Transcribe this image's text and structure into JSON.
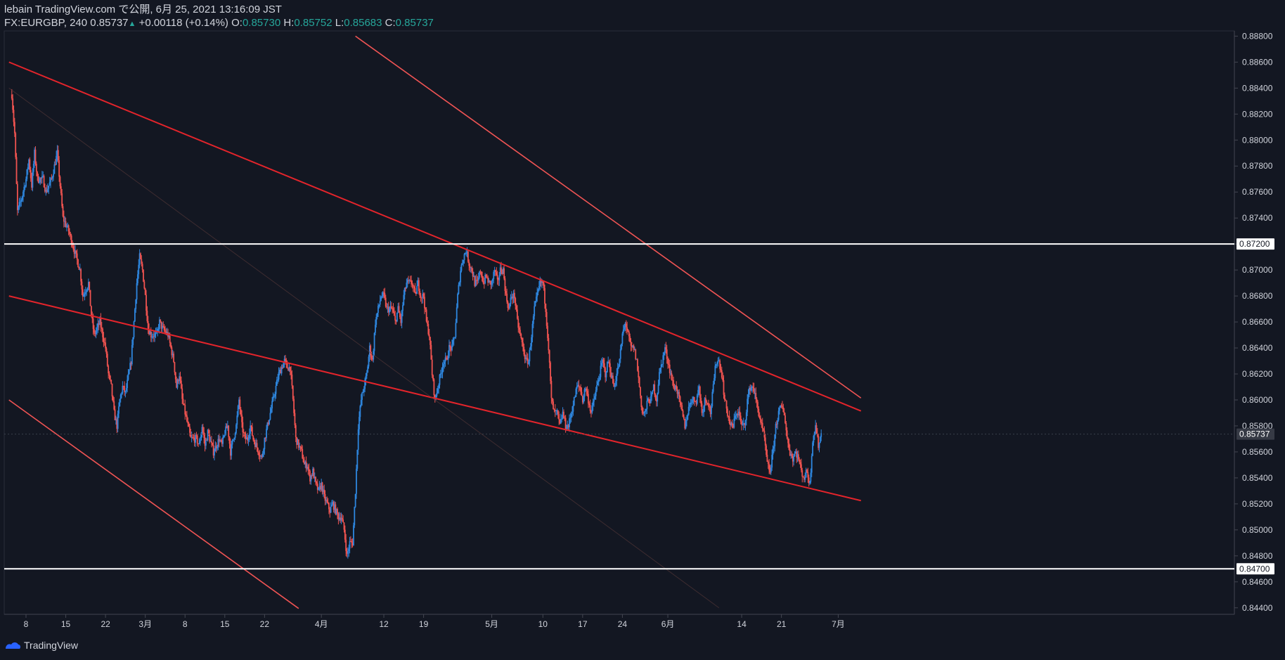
{
  "header": {
    "line1": "lebain TradingView.com で公開, 6月 25, 2021 13:16:09 JST",
    "symbol": "FX:EURGBP, 240",
    "last": "0.85737",
    "change": "+0.00118 (+0.14%)",
    "o_label": "O:",
    "o_value": "0.85730",
    "h_label": "H:",
    "h_value": "0.85752",
    "l_label": "L:",
    "l_value": "0.85683",
    "c_label": "C:",
    "c_value": "0.85737"
  },
  "brand": "TradingView",
  "colors": {
    "bg": "#131722",
    "up": "#2e86de",
    "down": "#ef5350",
    "trend": "#e3242b",
    "channel": "#f05454",
    "level": "#ffffff",
    "grid": "#1e222d",
    "text": "#d1d4dc"
  },
  "chart_data": {
    "type": "candlestick",
    "title": "FX:EURGBP, 240",
    "ylim": [
      0.8435,
      0.8884
    ],
    "ylabel": "",
    "xlabel": "",
    "y_ticks": [
      "0.88800",
      "0.88600",
      "0.88400",
      "0.88200",
      "0.88000",
      "0.87800",
      "0.87600",
      "0.87400",
      "0.87200",
      "0.87000",
      "0.86800",
      "0.86600",
      "0.86400",
      "0.86200",
      "0.86000",
      "0.85800",
      "0.85600",
      "0.85400",
      "0.85200",
      "0.85000",
      "0.84800",
      "0.84600",
      "0.84400"
    ],
    "x_ticks": [
      {
        "label": "8",
        "day": 0
      },
      {
        "label": "15",
        "day": 7
      },
      {
        "label": "22",
        "day": 14
      },
      {
        "label": "3月",
        "day": 21
      },
      {
        "label": "8",
        "day": 28
      },
      {
        "label": "15",
        "day": 35
      },
      {
        "label": "22",
        "day": 42
      },
      {
        "label": "4月",
        "day": 52
      },
      {
        "label": "12",
        "day": 63
      },
      {
        "label": "19",
        "day": 70
      },
      {
        "label": "5月",
        "day": 82
      },
      {
        "label": "10",
        "day": 91
      },
      {
        "label": "17",
        "day": 98
      },
      {
        "label": "24",
        "day": 105
      },
      {
        "label": "6月",
        "day": 113
      },
      {
        "label": "14",
        "day": 126
      },
      {
        "label": "21",
        "day": 133
      },
      {
        "label": "7月",
        "day": 143
      }
    ],
    "horizontal_levels": [
      "0.87200",
      "0.84700"
    ],
    "last_price": "0.85737",
    "price_path": [
      [
        -2.5,
        0.8835
      ],
      [
        -2,
        0.8805
      ],
      [
        -1.5,
        0.8745
      ],
      [
        -0.8,
        0.8755
      ],
      [
        0,
        0.877
      ],
      [
        0.5,
        0.8785
      ],
      [
        1,
        0.8765
      ],
      [
        1.5,
        0.879
      ],
      [
        2,
        0.877
      ],
      [
        3,
        0.877
      ],
      [
        3.5,
        0.876
      ],
      [
        4.5,
        0.877
      ],
      [
        5,
        0.878
      ],
      [
        5.5,
        0.879
      ],
      [
        6,
        0.8765
      ],
      [
        6.5,
        0.874
      ],
      [
        7.5,
        0.873
      ],
      [
        8.5,
        0.8715
      ],
      [
        9.5,
        0.87
      ],
      [
        10,
        0.868
      ],
      [
        11,
        0.869
      ],
      [
        11.5,
        0.8665
      ],
      [
        12,
        0.865
      ],
      [
        13,
        0.866
      ],
      [
        14,
        0.864
      ],
      [
        14.5,
        0.862
      ],
      [
        15,
        0.861
      ],
      [
        15.5,
        0.859
      ],
      [
        16,
        0.858
      ],
      [
        16.5,
        0.86
      ],
      [
        17,
        0.861
      ],
      [
        17.5,
        0.8605
      ],
      [
        18.5,
        0.863
      ],
      [
        19,
        0.866
      ],
      [
        19.5,
        0.869
      ],
      [
        20,
        0.871
      ],
      [
        20.5,
        0.87
      ],
      [
        21,
        0.868
      ],
      [
        21.5,
        0.8655
      ],
      [
        22,
        0.865
      ],
      [
        23,
        0.865
      ],
      [
        23.5,
        0.866
      ],
      [
        24,
        0.8655
      ],
      [
        25,
        0.865
      ],
      [
        25.5,
        0.864
      ],
      [
        26,
        0.863
      ],
      [
        26.5,
        0.861
      ],
      [
        27,
        0.862
      ],
      [
        27.5,
        0.86
      ],
      [
        28,
        0.859
      ],
      [
        28.5,
        0.858
      ],
      [
        29,
        0.857
      ],
      [
        30,
        0.857
      ],
      [
        30.5,
        0.8565
      ],
      [
        31,
        0.858
      ],
      [
        31.5,
        0.8565
      ],
      [
        32,
        0.8575
      ],
      [
        33,
        0.856
      ],
      [
        34,
        0.857
      ],
      [
        34.5,
        0.8565
      ],
      [
        35,
        0.8575
      ],
      [
        35.5,
        0.858
      ],
      [
        36,
        0.856
      ],
      [
        37,
        0.858
      ],
      [
        37.5,
        0.86
      ],
      [
        38,
        0.858
      ],
      [
        38.5,
        0.857
      ],
      [
        39,
        0.857
      ],
      [
        39.5,
        0.858
      ],
      [
        40,
        0.857
      ],
      [
        40.5,
        0.8565
      ],
      [
        41,
        0.856
      ],
      [
        41.5,
        0.8555
      ],
      [
        42,
        0.857
      ],
      [
        43,
        0.859
      ],
      [
        43.5,
        0.86
      ],
      [
        44,
        0.861
      ],
      [
        44.5,
        0.862
      ],
      [
        45,
        0.8625
      ],
      [
        45.5,
        0.863
      ],
      [
        46,
        0.8625
      ],
      [
        46.5,
        0.8625
      ],
      [
        47,
        0.86
      ],
      [
        47.5,
        0.857
      ],
      [
        48,
        0.8565
      ],
      [
        48.5,
        0.856
      ],
      [
        49,
        0.855
      ],
      [
        49.5,
        0.855
      ],
      [
        50,
        0.854
      ],
      [
        50.5,
        0.8545
      ],
      [
        51,
        0.8535
      ],
      [
        51.5,
        0.853
      ],
      [
        52,
        0.8535
      ],
      [
        52.5,
        0.8525
      ],
      [
        53,
        0.852
      ],
      [
        53.5,
        0.8515
      ],
      [
        54,
        0.852
      ],
      [
        54.5,
        0.8515
      ],
      [
        55,
        0.851
      ],
      [
        55.5,
        0.851
      ],
      [
        56,
        0.85
      ],
      [
        56.5,
        0.848
      ],
      [
        57,
        0.849
      ],
      [
        57.5,
        0.849
      ],
      [
        58,
        0.853
      ],
      [
        58.5,
        0.858
      ],
      [
        59,
        0.86
      ],
      [
        60,
        0.862
      ],
      [
        60.5,
        0.864
      ],
      [
        61,
        0.863
      ],
      [
        61.5,
        0.866
      ],
      [
        62,
        0.867
      ],
      [
        62.5,
        0.868
      ],
      [
        63,
        0.868
      ],
      [
        63.5,
        0.867
      ],
      [
        64,
        0.867
      ],
      [
        64.5,
        0.867
      ],
      [
        65,
        0.866
      ],
      [
        65.5,
        0.867
      ],
      [
        66,
        0.866
      ],
      [
        66.5,
        0.868
      ],
      [
        67,
        0.869
      ],
      [
        67.5,
        0.869
      ],
      [
        68,
        0.869
      ],
      [
        68.5,
        0.868
      ],
      [
        69,
        0.869
      ],
      [
        69.5,
        0.868
      ],
      [
        70,
        0.868
      ],
      [
        70.5,
        0.866
      ],
      [
        71,
        0.865
      ],
      [
        71.5,
        0.862
      ],
      [
        72,
        0.86
      ],
      [
        72.5,
        0.861
      ],
      [
        73,
        0.862
      ],
      [
        73.5,
        0.863
      ],
      [
        74,
        0.863
      ],
      [
        74.5,
        0.864
      ],
      [
        75,
        0.864
      ],
      [
        75.5,
        0.865
      ],
      [
        76,
        0.868
      ],
      [
        76.5,
        0.87
      ],
      [
        77,
        0.871
      ],
      [
        77.5,
        0.8715
      ],
      [
        78,
        0.8705
      ],
      [
        78.5,
        0.87
      ],
      [
        79,
        0.869
      ],
      [
        79.5,
        0.869
      ],
      [
        80,
        0.87
      ],
      [
        80.5,
        0.869
      ],
      [
        81,
        0.8695
      ],
      [
        81.5,
        0.869
      ],
      [
        82,
        0.869
      ],
      [
        82.5,
        0.87
      ],
      [
        83,
        0.869
      ],
      [
        83.5,
        0.87
      ],
      [
        84,
        0.87
      ],
      [
        84.5,
        0.868
      ],
      [
        85,
        0.867
      ],
      [
        85.5,
        0.868
      ],
      [
        86,
        0.868
      ],
      [
        86.5,
        0.866
      ],
      [
        87,
        0.865
      ],
      [
        87.5,
        0.864
      ],
      [
        88,
        0.863
      ],
      [
        88.5,
        0.863
      ],
      [
        89,
        0.865
      ],
      [
        89.5,
        0.867
      ],
      [
        90,
        0.868
      ],
      [
        90.5,
        0.869
      ],
      [
        91,
        0.869
      ],
      [
        91.5,
        0.867
      ],
      [
        92,
        0.864
      ],
      [
        92.5,
        0.86
      ],
      [
        93,
        0.859
      ],
      [
        93.5,
        0.859
      ],
      [
        94,
        0.858
      ],
      [
        94.5,
        0.859
      ],
      [
        95,
        0.858
      ],
      [
        95.5,
        0.858
      ],
      [
        96,
        0.859
      ],
      [
        96.5,
        0.86
      ],
      [
        97,
        0.861
      ],
      [
        97.5,
        0.861
      ],
      [
        98,
        0.86
      ],
      [
        98.5,
        0.861
      ],
      [
        99,
        0.86
      ],
      [
        99.5,
        0.859
      ],
      [
        100,
        0.86
      ],
      [
        100.5,
        0.861
      ],
      [
        101,
        0.862
      ],
      [
        101.5,
        0.863
      ],
      [
        102,
        0.862
      ],
      [
        102.5,
        0.863
      ],
      [
        103,
        0.862
      ],
      [
        103.5,
        0.861
      ],
      [
        104,
        0.862
      ],
      [
        104.5,
        0.863
      ],
      [
        105,
        0.865
      ],
      [
        105.5,
        0.866
      ],
      [
        106,
        0.865
      ],
      [
        106.5,
        0.864
      ],
      [
        107,
        0.864
      ],
      [
        107.5,
        0.863
      ],
      [
        108,
        0.861
      ],
      [
        108.5,
        0.859
      ],
      [
        109,
        0.859
      ],
      [
        109.5,
        0.86
      ],
      [
        110,
        0.86
      ],
      [
        110.5,
        0.861
      ],
      [
        111,
        0.86
      ],
      [
        111.5,
        0.862
      ],
      [
        112,
        0.863
      ],
      [
        112.5,
        0.864
      ],
      [
        113,
        0.863
      ],
      [
        113.5,
        0.862
      ],
      [
        114,
        0.861
      ],
      [
        114.5,
        0.861
      ],
      [
        115,
        0.86
      ],
      [
        115.5,
        0.859
      ],
      [
        116,
        0.858
      ],
      [
        116.5,
        0.859
      ],
      [
        117,
        0.86
      ],
      [
        117.5,
        0.86
      ],
      [
        118,
        0.86
      ],
      [
        118.5,
        0.861
      ],
      [
        119,
        0.859
      ],
      [
        119.5,
        0.86
      ],
      [
        120,
        0.86
      ],
      [
        120.5,
        0.859
      ],
      [
        121,
        0.861
      ],
      [
        121.5,
        0.863
      ],
      [
        122,
        0.863
      ],
      [
        122.5,
        0.862
      ],
      [
        123,
        0.86
      ],
      [
        123.5,
        0.859
      ],
      [
        124,
        0.858
      ],
      [
        124.5,
        0.858
      ],
      [
        125,
        0.859
      ],
      [
        125.5,
        0.859
      ],
      [
        126,
        0.858
      ],
      [
        126.5,
        0.858
      ],
      [
        127,
        0.86
      ],
      [
        127.5,
        0.861
      ],
      [
        128,
        0.861
      ],
      [
        128.5,
        0.86
      ],
      [
        129,
        0.859
      ],
      [
        129.5,
        0.858
      ],
      [
        130,
        0.857
      ],
      [
        130.5,
        0.855
      ],
      [
        131,
        0.8545
      ],
      [
        131.5,
        0.856
      ],
      [
        132,
        0.858
      ],
      [
        132.5,
        0.859
      ],
      [
        133,
        0.8595
      ],
      [
        133.5,
        0.859
      ],
      [
        134,
        0.857
      ],
      [
        134.5,
        0.856
      ],
      [
        135,
        0.8555
      ],
      [
        135.5,
        0.856
      ],
      [
        136,
        0.8555
      ],
      [
        136.5,
        0.8545
      ],
      [
        137,
        0.854
      ],
      [
        137.5,
        0.8545
      ],
      [
        138,
        0.8535
      ],
      [
        138.5,
        0.857
      ],
      [
        139,
        0.858
      ],
      [
        139.5,
        0.8565
      ],
      [
        140,
        0.8574
      ]
    ],
    "lines": [
      {
        "name": "upper-trendline",
        "from": [
          -3,
          0.886
        ],
        "to": [
          147,
          0.85915
        ]
      },
      {
        "name": "middle-trendline",
        "from": [
          -3,
          0.868
        ],
        "to": [
          147,
          0.85225
        ]
      },
      {
        "name": "upper-channel-line",
        "from": [
          58,
          0.888
        ],
        "to": [
          147,
          0.86015
        ]
      },
      {
        "name": "lower-channel-line",
        "from": [
          -3,
          0.86
        ],
        "to": [
          48,
          0.84395
        ]
      },
      {
        "name": "faint-diagonal",
        "from": [
          -3,
          0.884
        ],
        "to": [
          122,
          0.844
        ]
      }
    ]
  }
}
